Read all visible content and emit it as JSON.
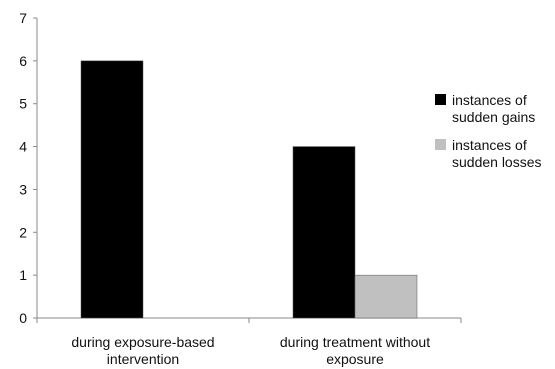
{
  "chart_data": {
    "type": "bar",
    "categories": [
      [
        "during exposure-based",
        "intervention"
      ],
      [
        "during treatment without",
        "exposure"
      ]
    ],
    "series": [
      {
        "name": [
          "instances of",
          "sudden gains"
        ],
        "values": [
          6,
          4
        ],
        "color": "#000000"
      },
      {
        "name": [
          "instances of",
          "sudden losses"
        ],
        "values": [
          0,
          1
        ],
        "color": "#c0c0c0"
      }
    ],
    "yticks": [
      "0",
      "1",
      "2",
      "3",
      "4",
      "5",
      "6",
      "7"
    ],
    "ylim": [
      0,
      7
    ],
    "grid": false,
    "legend_position": "right"
  }
}
